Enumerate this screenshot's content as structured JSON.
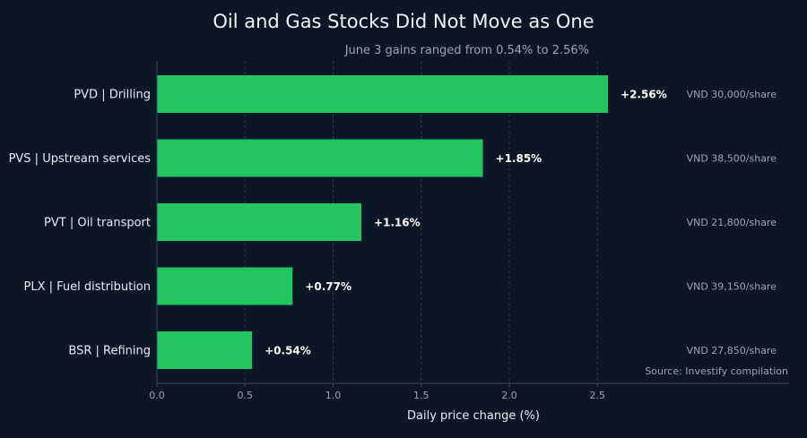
{
  "chart_data": {
    "type": "bar",
    "orientation": "horizontal",
    "title": "Oil and Gas Stocks Did Not Move as One",
    "subtitle": "June 3 gains ranged from 0.54% to 2.56%",
    "xlabel": "Daily price change (%)",
    "ylabel": "",
    "xlim": [
      0,
      3.2
    ],
    "xticks": [
      0,
      0.5,
      1,
      1.5,
      2,
      2.5
    ],
    "xtick_labels": [
      "0.0",
      "0.5",
      "1.0",
      "1.5",
      "2.0",
      "2.5"
    ],
    "grid": "vertical dashed",
    "bar_color": "#22c55e",
    "categories": [
      "PVD  |  Drilling",
      "PVS  |  Upstream services",
      "PVT  |  Oil transport",
      "PLX  |  Fuel distribution",
      "BSR  |  Refining"
    ],
    "values": [
      2.56,
      1.85,
      1.16,
      0.77,
      0.54
    ],
    "value_labels": [
      "+2.56%",
      "+1.85%",
      "+1.16%",
      "+0.77%",
      "+0.54%"
    ],
    "price_labels": [
      "VND 30,000/share",
      "VND 38,500/share",
      "VND 21,800/share",
      "VND 39,150/share",
      "VND 27,850/share"
    ],
    "source": "Source: Investify compilation"
  }
}
